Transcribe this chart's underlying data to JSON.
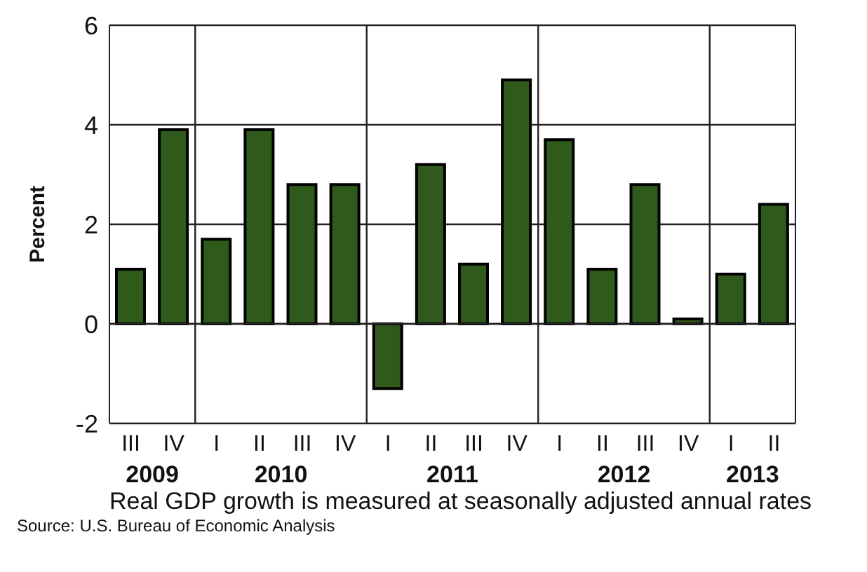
{
  "chart_data": {
    "type": "bar",
    "ylabel": "Percent",
    "categories": [
      "III",
      "IV",
      "I",
      "II",
      "III",
      "IV",
      "I",
      "II",
      "III",
      "IV",
      "I",
      "II",
      "III",
      "IV",
      "I",
      "II"
    ],
    "values": [
      1.1,
      3.9,
      1.7,
      3.9,
      2.8,
      2.8,
      -1.3,
      3.2,
      1.2,
      4.9,
      3.7,
      1.1,
      2.8,
      0.1,
      1.0,
      2.4
    ],
    "color": "#2f5a1c",
    "ylim": [
      -2,
      6
    ],
    "yticks": [
      -2,
      0,
      2,
      4,
      6
    ],
    "grid": "y",
    "annotations": [
      "2009",
      "2010",
      "2011",
      "2012",
      "2013",
      "Real GDP growth is measured at seasonally adjusted annual rates",
      "Source: U.S. Bureau of Economic Analysis"
    ]
  }
}
